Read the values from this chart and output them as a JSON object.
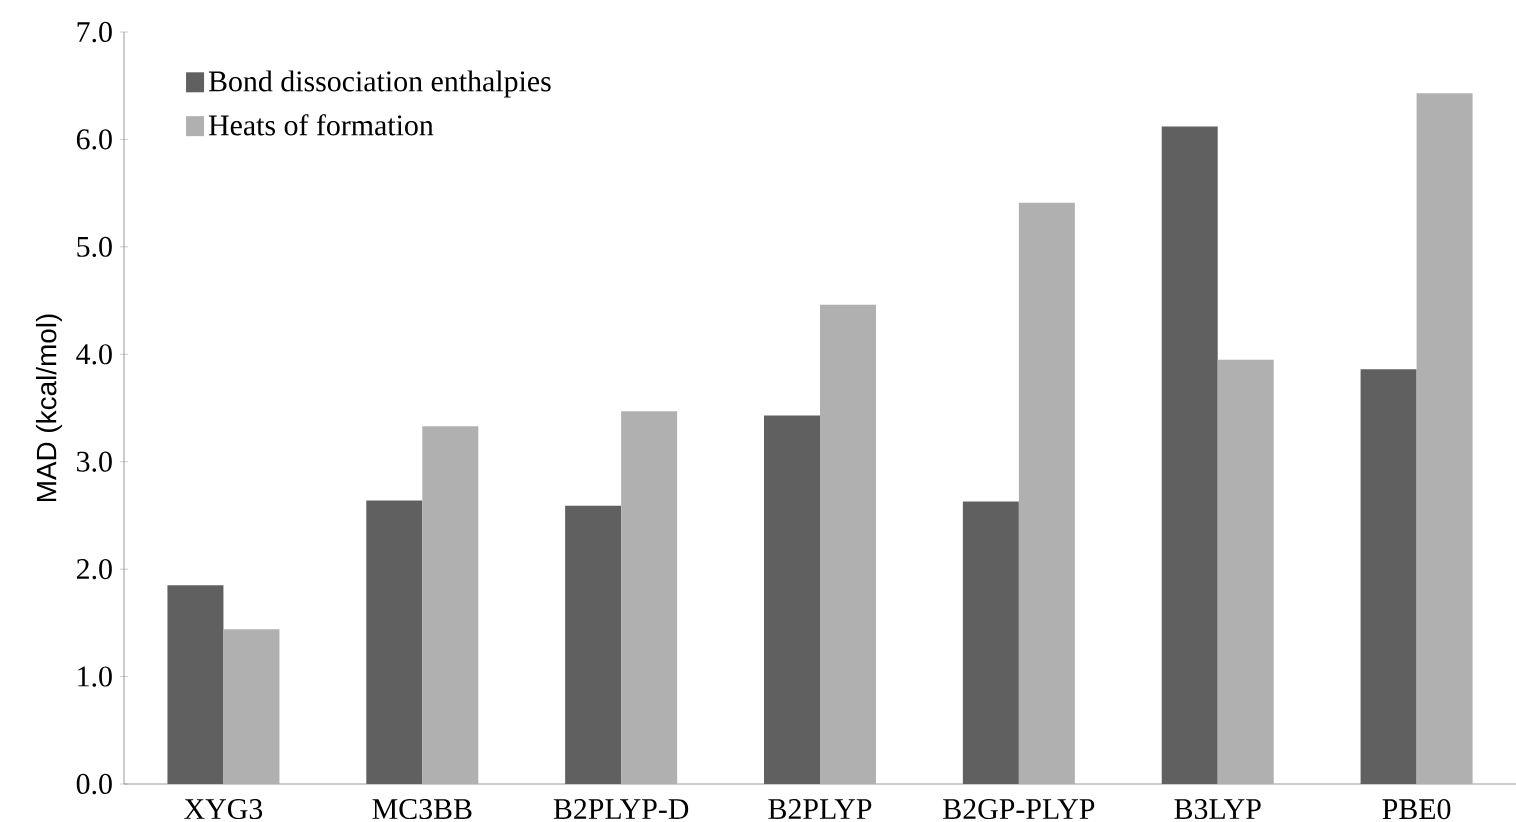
{
  "chart_data": {
    "type": "bar",
    "ylabel": "MAD (kcal/mol)",
    "categories": [
      "XYG3",
      "MC3BB",
      "B2PLYP-D",
      "B2PLYP",
      "B2GP-PLYP",
      "B3LYP",
      "PBE0"
    ],
    "series": [
      {
        "name": "Bond dissociation enthalpies",
        "color": "#606060",
        "values": [
          1.85,
          2.64,
          2.59,
          3.43,
          2.63,
          6.12,
          3.86
        ]
      },
      {
        "name": "Heats of formation",
        "color": "#b0b0b0",
        "values": [
          1.44,
          3.33,
          3.47,
          4.46,
          5.41,
          3.95,
          6.43
        ]
      }
    ],
    "ylim": [
      0,
      7
    ],
    "yticks": [
      {
        "value": 0,
        "label": "0.0"
      },
      {
        "value": 1,
        "label": "1.0"
      },
      {
        "value": 2,
        "label": "2.0"
      },
      {
        "value": 3,
        "label": "3.0"
      },
      {
        "value": 4,
        "label": "4.0"
      },
      {
        "value": 5,
        "label": "5.0"
      },
      {
        "value": 6,
        "label": "6.0"
      },
      {
        "value": 7,
        "label": "7.0"
      }
    ],
    "grid": false,
    "legend": "top left"
  }
}
